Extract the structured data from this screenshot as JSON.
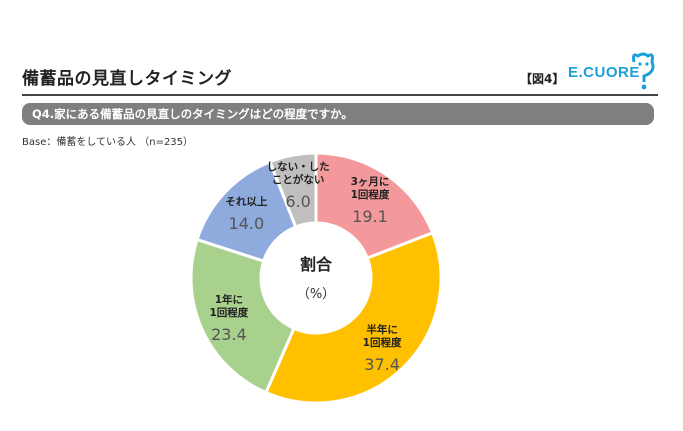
{
  "header": {
    "title": "備蓄品の見直しタイミング",
    "figure_label": "【図4】",
    "logo_text": "E.CUORE"
  },
  "question": "Q4.家にある備蓄品の見直しのタイミングはどの程度ですか。",
  "base": "Base：備蓄をしている人 （n=235）",
  "colors": {
    "slice_1": "#f4999b",
    "slice_2": "#ffc000",
    "slice_3": "#a9d18e",
    "slice_4": "#8faadc",
    "slice_5": "#bfbfbf",
    "question_bar": "#7f7f7f",
    "brand": "#1a9fd8"
  },
  "chart_data": {
    "type": "pie",
    "variant": "donut",
    "center_title": "割合",
    "center_unit": "（%）",
    "slices": [
      {
        "label_lines": [
          "3ヶ月に",
          "1回程度"
        ],
        "value": 19.1,
        "display": "19.1"
      },
      {
        "label_lines": [
          "半年に",
          "1回程度"
        ],
        "value": 37.4,
        "display": "37.4"
      },
      {
        "label_lines": [
          "1年に",
          "1回程度"
        ],
        "value": 23.4,
        "display": "23.4"
      },
      {
        "label_lines": [
          "それ以上"
        ],
        "value": 14.0,
        "display": "14.0"
      },
      {
        "label_lines": [
          "しない・した",
          "ことがない"
        ],
        "value": 6.0,
        "display": "6.0"
      }
    ]
  }
}
